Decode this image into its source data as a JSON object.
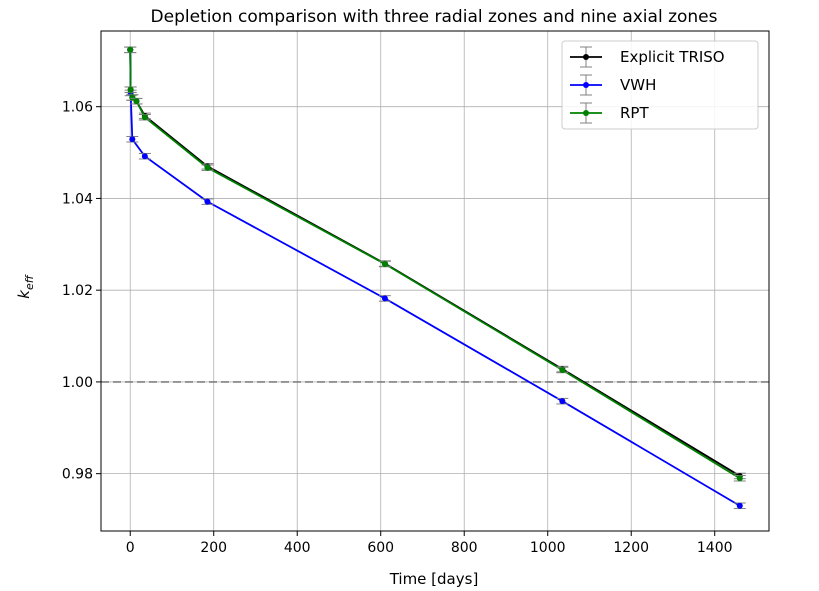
{
  "chart_data": {
    "type": "line",
    "title": "Depletion comparison with three radial zones and nine axial zones",
    "xlabel": "Time [days]",
    "ylabel_base": "k",
    "ylabel_sub": "eff",
    "xlim": [
      -70,
      1530
    ],
    "ylim": [
      0.9675,
      1.0765
    ],
    "x_ticks": [
      0,
      200,
      400,
      600,
      800,
      1000,
      1200,
      1400
    ],
    "y_ticks": [
      0.98,
      1.0,
      1.02,
      1.04,
      1.06
    ],
    "x_tick_labels": [
      "0",
      "200",
      "400",
      "600",
      "800",
      "1000",
      "1200",
      "1400"
    ],
    "y_tick_labels": [
      "0.98",
      "1.00",
      "1.02",
      "1.04",
      "1.06"
    ],
    "grid": true,
    "legend_position": "top-right",
    "reference_line": {
      "y": 1.0,
      "style": "dashed",
      "color": "#808080"
    },
    "errorbar_color": "#808080",
    "series": [
      {
        "name": "Explicit TRISO",
        "color": "#000000",
        "x": [
          0,
          1,
          5,
          15,
          35,
          185,
          610,
          1035,
          1460
        ],
        "y": [
          1.0724,
          1.0637,
          1.062,
          1.0612,
          1.058,
          1.047,
          1.0258,
          1.0028,
          0.9795
        ],
        "err": [
          0.0006,
          0.0006,
          0.0006,
          0.0006,
          0.0006,
          0.0006,
          0.0006,
          0.0006,
          0.0006
        ]
      },
      {
        "name": "VWH",
        "color": "#0000ff",
        "x": [
          0,
          1,
          5,
          35,
          185,
          610,
          1035,
          1460
        ],
        "y": [
          1.0724,
          1.063,
          1.0529,
          1.0492,
          1.0393,
          1.0182,
          0.9958,
          0.973
        ],
        "err": [
          0.0006,
          0.0006,
          0.0006,
          0.0006,
          0.0006,
          0.0006,
          0.0006,
          0.0006
        ]
      },
      {
        "name": "RPT",
        "color": "#008000",
        "x": [
          0,
          1,
          5,
          15,
          35,
          185,
          610,
          1035,
          1460
        ],
        "y": [
          1.0724,
          1.0637,
          1.062,
          1.0612,
          1.0577,
          1.0467,
          1.0257,
          1.0026,
          0.979
        ],
        "err": [
          0.0006,
          0.0006,
          0.0006,
          0.0006,
          0.0006,
          0.0006,
          0.0006,
          0.0006,
          0.0006
        ]
      }
    ]
  }
}
